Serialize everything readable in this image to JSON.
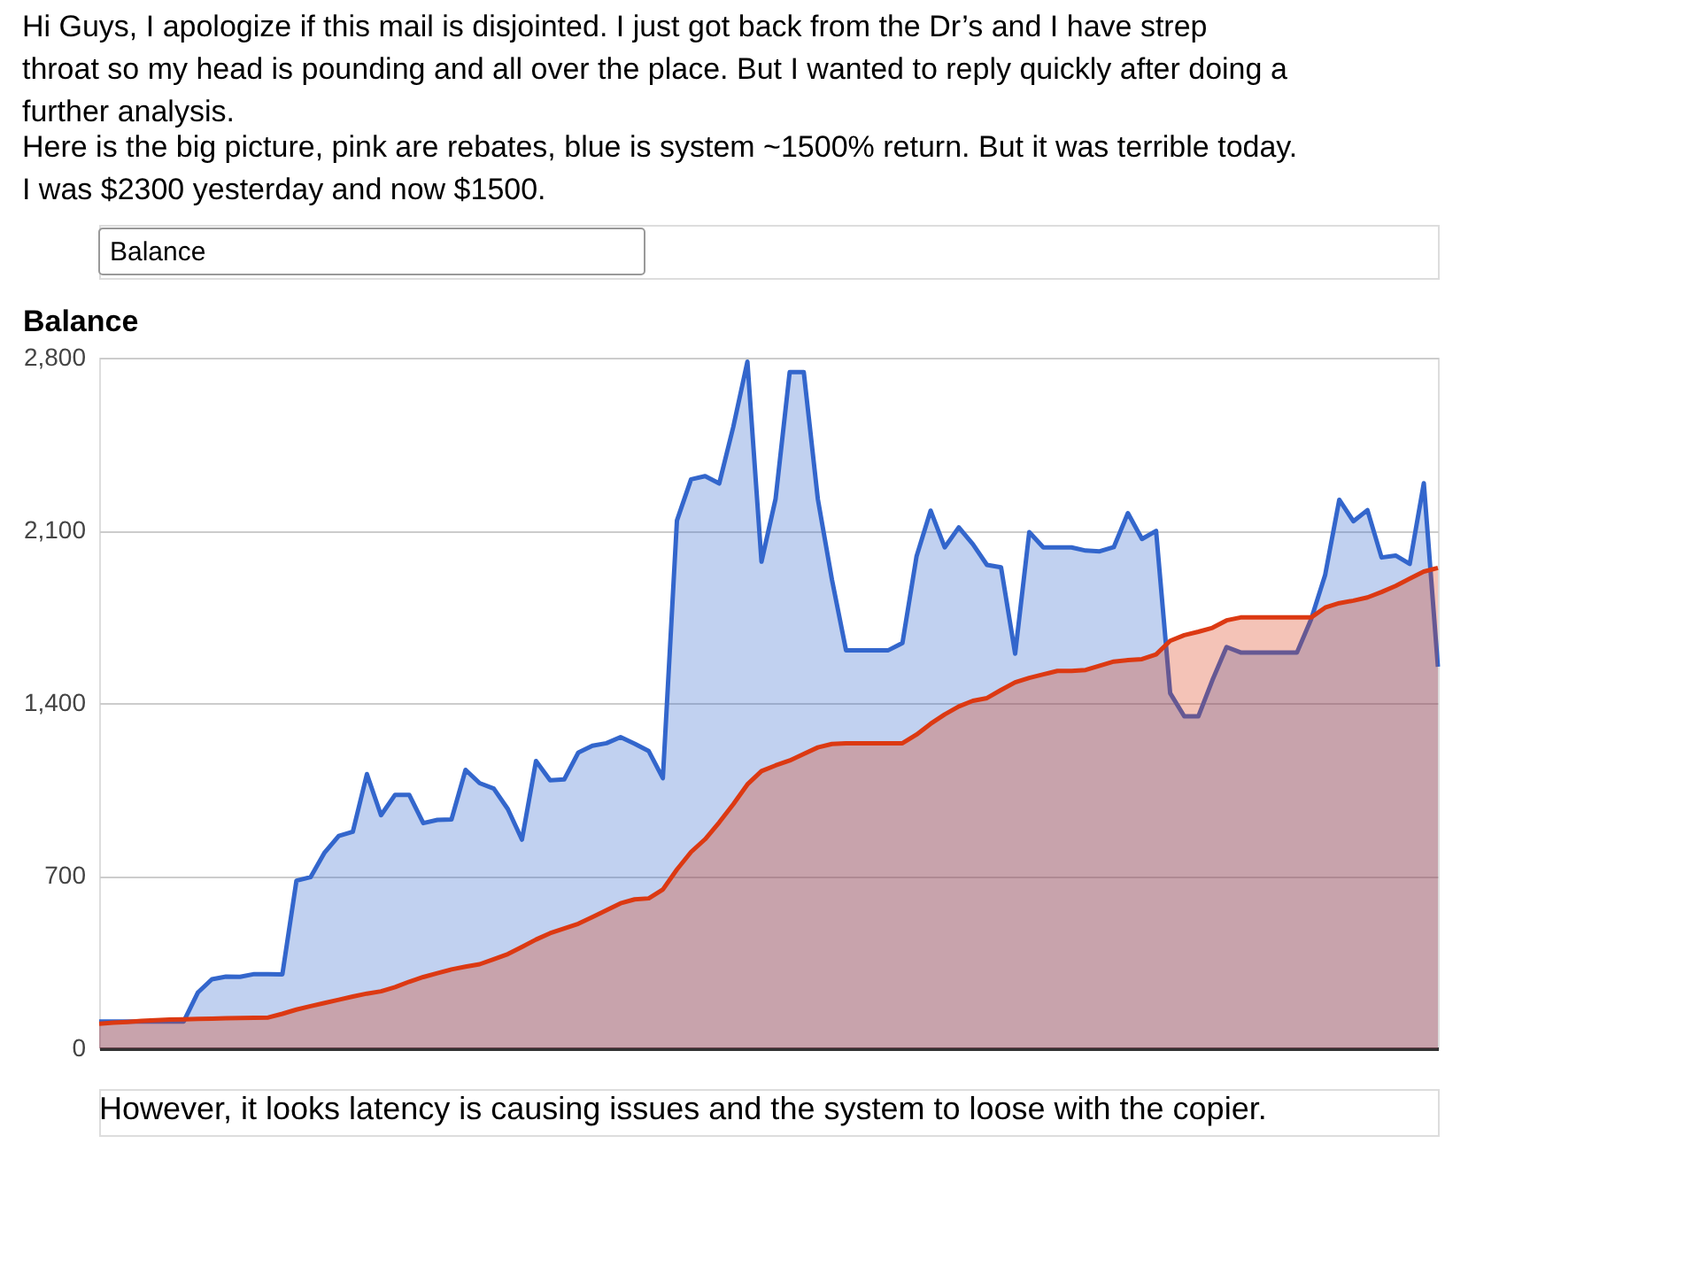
{
  "chart_data": {
    "type": "area",
    "title": "Hi Guys, I apologize if this mail is disjointed. I just got back from the Dr’s and I have strep throat so my head is pounding and all over the place. But I wanted to reply quickly after doing a further analysis.",
    "subtitle": "Here is the big picture, pink are rebates, blue is system ~1500% return. But it was terrible today. I was $2300 yesterday and now $1500.",
    "annotations": [
      "Balance",
      "Balance",
      "However, it looks latency is causing issues and the system to loose with the copier."
    ],
    "categories": [
      null,
      null,
      null,
      null,
      null,
      null,
      null,
      null,
      null,
      null,
      null,
      null,
      null,
      null,
      null,
      null,
      null,
      null,
      null,
      null,
      null,
      null,
      null,
      null,
      null,
      null,
      null,
      null,
      null,
      null,
      null,
      null,
      null,
      null,
      null,
      null,
      null,
      null,
      null,
      null,
      null,
      null,
      null,
      null,
      null,
      null,
      null,
      null,
      null,
      null,
      null,
      null,
      null,
      null,
      null,
      null,
      null,
      null,
      null,
      null,
      null,
      null,
      null,
      null,
      null,
      null,
      null,
      null,
      null,
      null,
      null,
      null,
      null,
      null,
      null,
      null,
      null,
      null,
      null,
      null,
      null,
      null,
      null,
      null,
      null,
      null,
      null,
      null,
      null,
      null,
      null,
      null,
      null,
      null,
      null,
      null
    ],
    "ylim": [
      0,
      2800
    ],
    "yticks": [
      0,
      700,
      {
        "value": 1400,
        "label": "1,400"
      },
      {
        "value": 2100,
        "label": "2,100"
      },
      {
        "value": 2800,
        "label": "2,800"
      }
    ],
    "grid": "y",
    "tick_labels": "y",
    "series": [
      {
        "color": "#3366cc",
        "values": [
          109,
          109,
          109,
          109,
          109,
          109,
          109,
          226,
          280,
          291,
          290,
          301,
          301,
          300,
          680,
          694,
          794,
          861,
          878,
          1112,
          945,
          1028,
          1028,
          913,
          926,
          928,
          1129,
          1075,
          1053,
          970,
          846,
          1165,
          1087,
          1090,
          1199,
          1227,
          1237,
          1262,
          1235,
          1205,
          1095,
          2140,
          2307,
          2320,
          2290,
          2520,
          2784,
          1973,
          2228,
          2742,
          2742,
          2226,
          1900,
          1614,
          1614,
          1614,
          1614,
          1643,
          1994,
          2180,
          2031,
          2112,
          2044,
          1960,
          1950,
          1600,
          2093,
          2031,
          2031,
          2031,
          2018,
          2015,
          2032,
          2170,
          2065,
          2098,
          1440,
          1346,
          1346,
          1493,
          1627,
          1605,
          1605,
          1605,
          1605,
          1605,
          1739,
          1920,
          2224,
          2137,
          2182,
          1990,
          1998,
          1964,
          2291,
          1547
        ]
      },
      {
        "color": "#dc3912",
        "values": [
          100,
          104,
          107,
          111,
          114,
          117,
          118,
          119,
          120,
          122,
          123,
          124,
          125,
          140,
          157,
          171,
          184,
          197,
          210,
          222,
          231,
          248,
          270,
          289,
          305,
          320,
          331,
          341,
          361,
          382,
          411,
          441,
          467,
          486,
          505,
          532,
          560,
          588,
          604,
          608,
          644,
          725,
          796,
          848,
          916,
          990,
          1070,
          1124,
          1147,
          1167,
          1194,
          1220,
          1234,
          1237,
          1237,
          1237,
          1237,
          1237,
          1272,
          1316,
          1354,
          1386,
          1409,
          1420,
          1453,
          1484,
          1502,
          1516,
          1530,
          1530,
          1534,
          1551,
          1568,
          1574,
          1578,
          1597,
          1652,
          1675,
          1689,
          1705,
          1735,
          1747,
          1747,
          1747,
          1747,
          1747,
          1747,
          1787,
          1805,
          1815,
          1828,
          1850,
          1875,
          1904,
          1933,
          1948
        ]
      }
    ]
  }
}
